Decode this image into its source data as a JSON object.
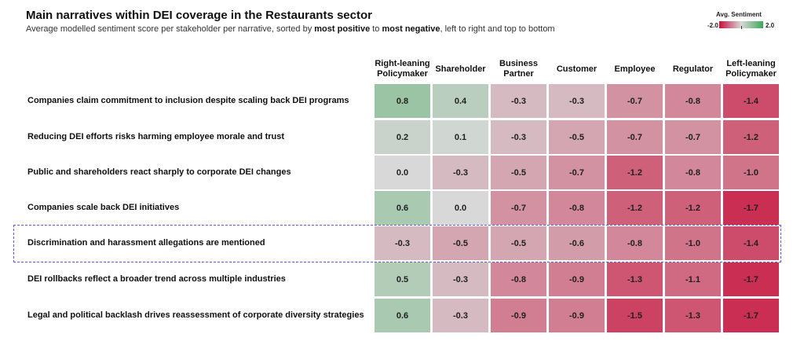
{
  "chart_data": {
    "type": "heatmap",
    "title": "Main narratives within DEI coverage in the Restaurants sector",
    "subtitle": {
      "prefix": "Average modelled sentiment score per stakeholder per narrative, sorted by ",
      "bold1": "most positive",
      "middle": " to ",
      "bold2": "most negative",
      "suffix": ", left to right and top to bottom"
    },
    "legend": {
      "title": "Avg. Sentiment",
      "min": -2.0,
      "max": 2.0,
      "min_label": "-2.0",
      "max_label": "2.0"
    },
    "colors": {
      "negative": "#c8103c",
      "neutral": "#d8d8d8",
      "positive": "#3fa755"
    },
    "columns": [
      "Right-leaning Policymaker",
      "Shareholder",
      "Business Partner",
      "Customer",
      "Employee",
      "Regulator",
      "Left-leaning Policymaker"
    ],
    "rows": [
      {
        "label": "Companies claim commitment to inclusion despite scaling back DEI programs",
        "values": [
          0.8,
          0.4,
          -0.3,
          -0.3,
          -0.7,
          -0.8,
          -1.4
        ],
        "labels": [
          "0.8",
          "0.4",
          "-0.3",
          "-0.3",
          "-0.7",
          "-0.8",
          "-1.4"
        ]
      },
      {
        "label": "Reducing DEI efforts risks harming employee morale and trust",
        "values": [
          0.2,
          0.1,
          -0.3,
          -0.5,
          -0.7,
          -0.7,
          -1.2
        ],
        "labels": [
          "0.2",
          "0.1",
          "-0.3",
          "-0.5",
          "-0.7",
          "-0.7",
          "-1.2"
        ]
      },
      {
        "label": "Public and shareholders react sharply to corporate DEI changes",
        "values": [
          0.0,
          -0.3,
          -0.5,
          -0.7,
          -1.2,
          -0.8,
          -1.0
        ],
        "labels": [
          "0.0",
          "-0.3",
          "-0.5",
          "-0.7",
          "-1.2",
          "-0.8",
          "-1.0"
        ]
      },
      {
        "label": "Companies scale back DEI initiatives",
        "values": [
          0.6,
          0.0,
          -0.7,
          -0.8,
          -1.2,
          -1.2,
          -1.7
        ],
        "labels": [
          "0.6",
          "0.0",
          "-0.7",
          "-0.8",
          "-1.2",
          "-1.2",
          "-1.7"
        ]
      },
      {
        "label": "Discrimination and harassment allegations are mentioned",
        "values": [
          -0.3,
          -0.5,
          -0.5,
          -0.6,
          -0.8,
          -1.0,
          -1.4
        ],
        "labels": [
          "-0.3",
          "-0.5",
          "-0.5",
          "-0.6",
          "-0.8",
          "-1.0",
          "-1.4"
        ]
      },
      {
        "label": "DEI rollbacks reflect a broader trend across multiple industries",
        "values": [
          0.5,
          -0.3,
          -0.8,
          -0.9,
          -1.3,
          -1.1,
          -1.7
        ],
        "labels": [
          "0.5",
          "-0.3",
          "-0.8",
          "-0.9",
          "-1.3",
          "-1.1",
          "-1.7"
        ]
      },
      {
        "label": "Legal and political backlash drives reassessment of corporate diversity strategies",
        "values": [
          0.6,
          -0.3,
          -0.9,
          -0.9,
          -1.5,
          -1.3,
          -1.7
        ],
        "labels": [
          "0.6",
          "-0.3",
          "-0.9",
          "-0.9",
          "-1.5",
          "-1.3",
          "-1.7"
        ]
      }
    ],
    "highlighted_row": 4
  }
}
